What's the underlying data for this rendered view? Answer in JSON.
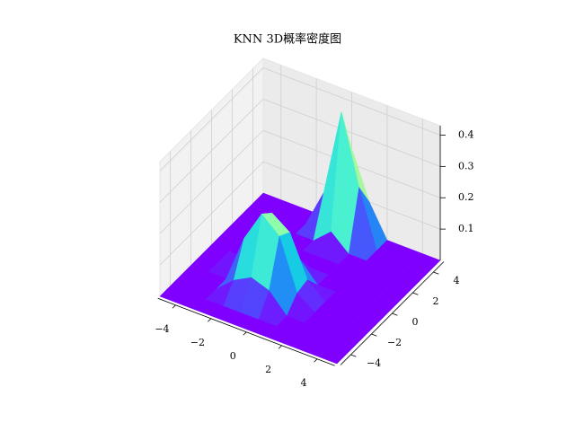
{
  "chart_data": {
    "type": "surface3d",
    "title": "KNN 3D概率密度图",
    "colormap": "rainbow",
    "x": [
      -5,
      -4,
      -3,
      -2,
      -1,
      0,
      1,
      2,
      3,
      4,
      5
    ],
    "y": [
      -5,
      -4,
      -3,
      -2,
      -1,
      0,
      1,
      2,
      3,
      4,
      5
    ],
    "z": [
      [
        0,
        0,
        0,
        0,
        0,
        0,
        0,
        0,
        0,
        0,
        0
      ],
      [
        0,
        0,
        0,
        0,
        0,
        0,
        0,
        0,
        0,
        0,
        0
      ],
      [
        0,
        0,
        0,
        0.05,
        0.08,
        0.06,
        0,
        0,
        0,
        0,
        0
      ],
      [
        0,
        0,
        0,
        0.15,
        0.25,
        0.2,
        0.04,
        0,
        0,
        0,
        0
      ],
      [
        0,
        0,
        0.04,
        0.12,
        0.22,
        0.18,
        0.05,
        0,
        0,
        0,
        0
      ],
      [
        0,
        0,
        0,
        0.05,
        0.1,
        0.06,
        0,
        0,
        0,
        0,
        0
      ],
      [
        0,
        0,
        0,
        0,
        0,
        0,
        0,
        0,
        0,
        0,
        0
      ],
      [
        0,
        0,
        0,
        0,
        0,
        0,
        0,
        0,
        0,
        0,
        0
      ],
      [
        0,
        0,
        0,
        0,
        0,
        0.05,
        0,
        0,
        0,
        0,
        0
      ],
      [
        0,
        0,
        0,
        0,
        0.12,
        0.4,
        0.18,
        0,
        0,
        0,
        0
      ],
      [
        0,
        0,
        0,
        0,
        0.08,
        0.25,
        0.1,
        0,
        0,
        0,
        0
      ]
    ],
    "xlim": [
      -5,
      5
    ],
    "ylim": [
      -5,
      5
    ],
    "zlim": [
      0,
      0.43
    ],
    "xticks": [
      {
        "value": -4,
        "label": "−4"
      },
      {
        "value": -2,
        "label": "−2"
      },
      0,
      2,
      4
    ],
    "yticks": [
      {
        "value": -4,
        "label": "−4"
      },
      {
        "value": -2,
        "label": "−2"
      },
      0,
      2,
      4
    ],
    "zticks": [
      0.1,
      0.2,
      0.3,
      0.4
    ],
    "grid": true
  }
}
